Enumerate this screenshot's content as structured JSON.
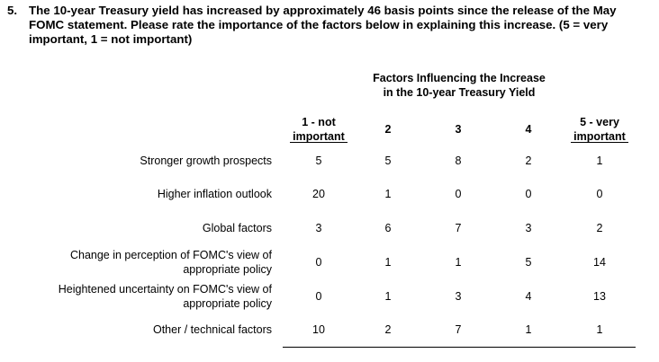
{
  "question": {
    "number": "5.",
    "text": "The 10-year Treasury yield has increased by approximately 46 basis points since the release of the May FOMC statement. Please rate the importance of the factors below in explaining this increase. (5 = very important, 1 = not important)"
  },
  "table": {
    "title_line1": "Factors Influencing the Increase",
    "title_line2": "in the 10-year Treasury Yield",
    "columns": [
      {
        "line1": "1 - not",
        "line2": "important"
      },
      {
        "line1": "2",
        "line2": ""
      },
      {
        "line1": "3",
        "line2": ""
      },
      {
        "line1": "4",
        "line2": ""
      },
      {
        "line1": "5 - very",
        "line2": "important"
      }
    ],
    "rows": [
      {
        "label1": "Stronger growth prospects",
        "label2": "",
        "values": [
          "5",
          "5",
          "8",
          "2",
          "1"
        ]
      },
      {
        "label1": "Higher inflation outlook",
        "label2": "",
        "values": [
          "20",
          "1",
          "0",
          "0",
          "0"
        ]
      },
      {
        "label1": "Global factors",
        "label2": "",
        "values": [
          "3",
          "6",
          "7",
          "3",
          "2"
        ]
      },
      {
        "label1": "Change in perception of FOMC's view of",
        "label2": "appropriate policy",
        "values": [
          "0",
          "1",
          "1",
          "5",
          "14"
        ]
      },
      {
        "label1": "Heightened uncertainty on FOMC's view of",
        "label2": "appropriate policy",
        "values": [
          "0",
          "1",
          "3",
          "4",
          "13"
        ]
      },
      {
        "label1": "Other / technical factors",
        "label2": "",
        "values": [
          "10",
          "2",
          "7",
          "1",
          "1"
        ]
      }
    ]
  }
}
